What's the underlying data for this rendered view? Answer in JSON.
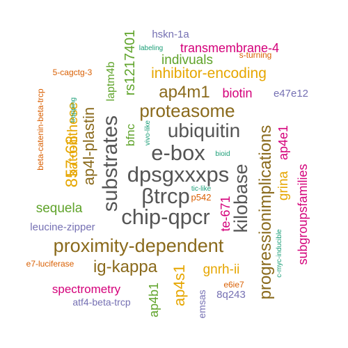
{
  "word_cloud": {
    "palette": {
      "orange": "#D95F02",
      "purple": "#7570B3",
      "magenta": "#D4007A",
      "green": "#5FA32A",
      "gold": "#E6A600",
      "brown": "#8A6A1C",
      "gray": "#555555",
      "teal": "#1B9E77"
    },
    "words": [
      {
        "text": "dpsgxxxps",
        "color": "gray"
      },
      {
        "text": "βtrcp",
        "color": "gray"
      },
      {
        "text": "e-box",
        "color": "gray"
      },
      {
        "text": "chip-qpcr",
        "color": "gray"
      },
      {
        "text": "ubiquitin",
        "color": "gray"
      },
      {
        "text": "substrates",
        "color": "gray"
      },
      {
        "text": "kilobase",
        "color": "gray"
      },
      {
        "text": "proximity-dependent",
        "color": "brown"
      },
      {
        "text": "proteasome",
        "color": "brown"
      },
      {
        "text": "ap4m1",
        "color": "brown"
      },
      {
        "text": "ig-kappa",
        "color": "brown"
      },
      {
        "text": "progressionimplications",
        "color": "brown"
      },
      {
        "text": "ap4l-plastin",
        "color": "brown"
      },
      {
        "text": "857-68",
        "color": "gold"
      },
      {
        "text": "kato-iiithese",
        "color": "gold"
      },
      {
        "text": "inhibitor-encoding",
        "color": "gold"
      },
      {
        "text": "ap4s1",
        "color": "gold"
      },
      {
        "text": "gnrh-ii",
        "color": "gold"
      },
      {
        "text": "grina",
        "color": "gold"
      },
      {
        "text": "ap4e1",
        "color": "magenta"
      },
      {
        "text": "transmembrane-4",
        "color": "magenta"
      },
      {
        "text": "biotin",
        "color": "magenta"
      },
      {
        "text": "te-671",
        "color": "magenta"
      },
      {
        "text": "spectrometry",
        "color": "magenta"
      },
      {
        "text": "subgroupsfamilies",
        "color": "magenta"
      },
      {
        "text": "rs1217401",
        "color": "green"
      },
      {
        "text": "indivuals",
        "color": "green"
      },
      {
        "text": "laptm4b",
        "color": "green"
      },
      {
        "text": "bfnc",
        "color": "green"
      },
      {
        "text": "sequela",
        "color": "green"
      },
      {
        "text": "ap4b1",
        "color": "green"
      },
      {
        "text": "hskn-1a",
        "color": "purple"
      },
      {
        "text": "leucine-zipper",
        "color": "purple"
      },
      {
        "text": "atf4-beta-trcp",
        "color": "purple"
      },
      {
        "text": "emsas",
        "color": "purple"
      },
      {
        "text": "8q243",
        "color": "purple"
      },
      {
        "text": "e47e12",
        "color": "purple"
      },
      {
        "text": "s-turning",
        "color": "orange"
      },
      {
        "text": "5-cagctg-3",
        "color": "orange"
      },
      {
        "text": "beta-catenin-beta-trcp",
        "color": "orange"
      },
      {
        "text": "p542",
        "color": "orange"
      },
      {
        "text": "e7-luciferase",
        "color": "orange"
      },
      {
        "text": "e6ie7",
        "color": "orange"
      },
      {
        "text": "labeling",
        "color": "teal"
      },
      {
        "text": "trapping",
        "color": "teal"
      },
      {
        "text": "vivo-like",
        "color": "teal"
      },
      {
        "text": "bioid",
        "color": "teal"
      },
      {
        "text": "tic-like",
        "color": "teal"
      },
      {
        "text": "c-myc-inducible",
        "color": "teal"
      }
    ]
  }
}
